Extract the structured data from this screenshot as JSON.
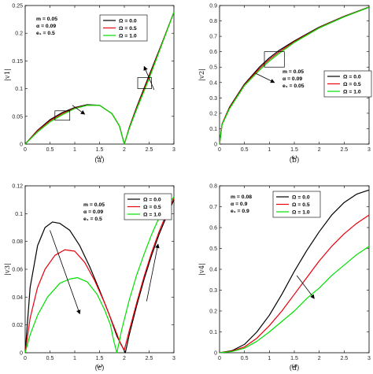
{
  "chart_data": [
    {
      "type": "line",
      "caption": "(a)",
      "xlabel": "ω",
      "ylabel": "|v1|",
      "xlim": [
        0,
        3.0
      ],
      "ylim": [
        0,
        0.25
      ],
      "xticks": [
        "0",
        "0.5",
        "1",
        "1.5",
        "2",
        "2.5",
        "3"
      ],
      "yticks": [
        "0",
        "0.05",
        "0.1",
        "0.15",
        "0.2",
        "0.25"
      ],
      "params": [
        "m = 0.05",
        "α = 0.09",
        "e₁ = 0.5"
      ],
      "legend_loc": "top-left",
      "colors": [
        "#000000",
        "#e8000b",
        "#00e000"
      ],
      "series": [
        {
          "name": "Ω = 0.0",
          "x": [
            0,
            0.25,
            0.5,
            0.75,
            1.0,
            1.25,
            1.5,
            1.75,
            1.9,
            2.0,
            2.1,
            2.25,
            2.5,
            2.75,
            3.0
          ],
          "y": [
            0,
            0.025,
            0.044,
            0.057,
            0.066,
            0.071,
            0.07,
            0.055,
            0.033,
            0,
            0.03,
            0.067,
            0.124,
            0.18,
            0.238
          ]
        },
        {
          "name": "Ω = 0.5",
          "x": [
            0,
            0.25,
            0.5,
            0.75,
            1.0,
            1.25,
            1.5,
            1.75,
            1.9,
            2.0,
            2.1,
            2.25,
            2.5,
            2.75,
            3.0
          ],
          "y": [
            0,
            0.024,
            0.042,
            0.055,
            0.065,
            0.07,
            0.07,
            0.055,
            0.033,
            0,
            0.029,
            0.065,
            0.121,
            0.179,
            0.238
          ]
        },
        {
          "name": "Ω = 1.0",
          "x": [
            0,
            0.25,
            0.5,
            0.75,
            1.0,
            1.25,
            1.5,
            1.75,
            1.9,
            2.0,
            2.1,
            2.25,
            2.5,
            2.75,
            3.0
          ],
          "y": [
            0,
            0.022,
            0.04,
            0.053,
            0.064,
            0.07,
            0.07,
            0.055,
            0.033,
            0,
            0.028,
            0.063,
            0.118,
            0.178,
            0.238
          ]
        }
      ],
      "boxes": [
        [
          0.6,
          0.043,
          0.9,
          0.06
        ],
        [
          2.27,
          0.1,
          2.55,
          0.12
        ]
      ],
      "arrows": [
        [
          0.95,
          0.07,
          1.2,
          0.054
        ],
        [
          2.6,
          0.098,
          2.4,
          0.14
        ]
      ]
    },
    {
      "type": "line",
      "caption": "(b)",
      "xlabel": "ω",
      "ylabel": "|v2|",
      "xlim": [
        0,
        3.0
      ],
      "ylim": [
        0,
        0.9
      ],
      "xticks": [
        "0",
        "0.5",
        "1",
        "1.5",
        "2",
        "2.5",
        "3"
      ],
      "yticks": [
        "0",
        "0.1",
        "0.2",
        "0.3",
        "0.4",
        "0.5",
        "0.6",
        "0.7",
        "0.8",
        "0.9"
      ],
      "params": [
        "m = 0.05",
        "α = 0.09",
        "e₁ = 0.05"
      ],
      "legend_loc": "bottom-right",
      "colors": [
        "#000000",
        "#e8000b",
        "#00e000"
      ],
      "series": [
        {
          "name": "Ω = 0.0",
          "x": [
            0,
            0.05,
            0.2,
            0.5,
            0.8,
            1.0,
            1.2,
            1.5,
            2.0,
            2.5,
            3.0
          ],
          "y": [
            0,
            0.13,
            0.24,
            0.39,
            0.5,
            0.56,
            0.61,
            0.67,
            0.76,
            0.83,
            0.89
          ]
        },
        {
          "name": "Ω = 0.5",
          "x": [
            0,
            0.05,
            0.2,
            0.5,
            0.8,
            1.0,
            1.2,
            1.5,
            2.0,
            2.5,
            3.0
          ],
          "y": [
            0,
            0.13,
            0.235,
            0.385,
            0.49,
            0.55,
            0.6,
            0.665,
            0.757,
            0.828,
            0.889
          ]
        },
        {
          "name": "Ω = 1.0",
          "x": [
            0,
            0.05,
            0.2,
            0.5,
            0.8,
            1.0,
            1.2,
            1.5,
            2.0,
            2.5,
            3.0
          ],
          "y": [
            0,
            0.125,
            0.23,
            0.38,
            0.48,
            0.54,
            0.59,
            0.66,
            0.754,
            0.826,
            0.888
          ]
        }
      ],
      "boxes": [
        [
          0.9,
          0.5,
          1.3,
          0.6
        ]
      ],
      "arrows": [
        [
          0.72,
          0.46,
          1.1,
          0.4
        ]
      ]
    },
    {
      "type": "line",
      "caption": "(c)",
      "xlabel": "ω",
      "ylabel": "|v3|",
      "xlim": [
        0,
        3.0
      ],
      "ylim": [
        0,
        0.12
      ],
      "xticks": [
        "0",
        "0.5",
        "1",
        "1.5",
        "2",
        "2.5",
        "3"
      ],
      "yticks": [
        "0",
        "0.02",
        "0.04",
        "0.06",
        "0.08",
        "0.1",
        "0.12"
      ],
      "params": [
        "m = 0.05",
        "α = 0.09",
        "e₁ = 0.5"
      ],
      "legend_loc": "top-right",
      "colors": [
        "#000000",
        "#e8000b",
        "#00e000"
      ],
      "series": [
        {
          "name": "Ω = 0.0",
          "x": [
            0,
            0.1,
            0.25,
            0.4,
            0.55,
            0.7,
            0.9,
            1.1,
            1.3,
            1.5,
            1.7,
            1.85,
            1.95,
            2.02,
            2.1,
            2.25,
            2.4,
            2.55,
            2.7,
            2.85,
            3.0
          ],
          "y": [
            0,
            0.047,
            0.077,
            0.09,
            0.094,
            0.093,
            0.088,
            0.077,
            0.062,
            0.045,
            0.027,
            0.012,
            0.005,
            0,
            0.013,
            0.034,
            0.053,
            0.07,
            0.085,
            0.098,
            0.11
          ]
        },
        {
          "name": "Ω = 0.5",
          "x": [
            0,
            0.1,
            0.25,
            0.4,
            0.6,
            0.8,
            1.0,
            1.2,
            1.4,
            1.6,
            1.8,
            1.93,
            2.0,
            2.1,
            2.25,
            2.4,
            2.55,
            2.7,
            2.85,
            3.0
          ],
          "y": [
            0,
            0.025,
            0.047,
            0.06,
            0.07,
            0.074,
            0.073,
            0.065,
            0.052,
            0.036,
            0.018,
            0.006,
            0.002,
            0.016,
            0.036,
            0.055,
            0.072,
            0.087,
            0.1,
            0.111
          ]
        },
        {
          "name": "Ω = 1.0",
          "x": [
            0,
            0.1,
            0.25,
            0.45,
            0.7,
            0.9,
            1.05,
            1.25,
            1.45,
            1.6,
            1.72,
            1.79,
            1.85,
            1.95,
            2.1,
            2.25,
            2.4,
            2.55,
            2.7,
            2.85,
            3.0
          ],
          "y": [
            0,
            0.013,
            0.027,
            0.04,
            0.05,
            0.053,
            0.054,
            0.051,
            0.042,
            0.031,
            0.02,
            0.008,
            0,
            0.017,
            0.038,
            0.056,
            0.071,
            0.085,
            0.097,
            0.105,
            0.112
          ]
        }
      ],
      "boxes": [],
      "arrows": [
        [
          0.5,
          0.088,
          1.1,
          0.028
        ],
        [
          2.45,
          0.037,
          2.68,
          0.078
        ]
      ]
    },
    {
      "type": "line",
      "caption": "(d)",
      "xlabel": "ω",
      "ylabel": "|v4|",
      "xlim": [
        0,
        3.0
      ],
      "ylim": [
        0,
        0.8
      ],
      "xticks": [
        "0",
        "0.5",
        "1",
        "1.5",
        "2",
        "2.5",
        "3"
      ],
      "yticks": [
        "0",
        "0.1",
        "0.2",
        "0.3",
        "0.4",
        "0.5",
        "0.6",
        "0.7",
        "0.8"
      ],
      "params": [
        "m = 0.08",
        "α = 0.9",
        "e₁ = 0.9"
      ],
      "legend_loc": "top-left",
      "colors": [
        "#000000",
        "#e8000b",
        "#00e000"
      ],
      "series": [
        {
          "name": "Ω = 0.0",
          "x": [
            0,
            0.25,
            0.5,
            0.75,
            1.0,
            1.25,
            1.5,
            1.75,
            2.0,
            2.25,
            2.5,
            2.75,
            3.0
          ],
          "y": [
            0,
            0.01,
            0.04,
            0.1,
            0.18,
            0.28,
            0.39,
            0.49,
            0.58,
            0.66,
            0.72,
            0.76,
            0.78
          ]
        },
        {
          "name": "Ω = 0.5",
          "x": [
            0,
            0.25,
            0.5,
            0.75,
            1.0,
            1.25,
            1.5,
            1.75,
            2.0,
            2.25,
            2.5,
            2.75,
            3.0
          ],
          "y": [
            0,
            0.008,
            0.028,
            0.07,
            0.13,
            0.2,
            0.28,
            0.36,
            0.44,
            0.51,
            0.57,
            0.62,
            0.66
          ]
        },
        {
          "name": "Ω = 1.0",
          "x": [
            0,
            0.25,
            0.5,
            0.75,
            1.0,
            1.25,
            1.5,
            1.75,
            2.0,
            2.25,
            2.5,
            2.75,
            3.0
          ],
          "y": [
            0,
            0.006,
            0.022,
            0.055,
            0.1,
            0.15,
            0.2,
            0.26,
            0.31,
            0.37,
            0.42,
            0.47,
            0.51
          ]
        }
      ],
      "boxes": [],
      "arrows": [
        [
          1.55,
          0.37,
          1.9,
          0.26
        ]
      ]
    }
  ]
}
